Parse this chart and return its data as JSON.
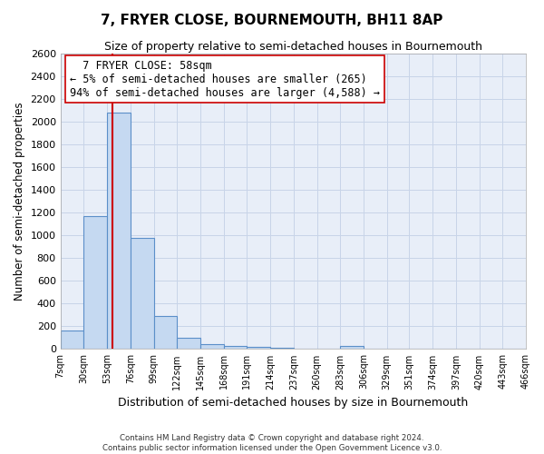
{
  "title": "7, FRYER CLOSE, BOURNEMOUTH, BH11 8AP",
  "subtitle": "Size of property relative to semi-detached houses in Bournemouth",
  "xlabel": "Distribution of semi-detached houses by size in Bournemouth",
  "ylabel": "Number of semi-detached properties",
  "bar_edges": [
    7,
    30,
    53,
    76,
    99,
    122,
    145,
    168,
    191,
    214,
    237,
    260,
    283,
    306,
    329,
    351,
    374,
    397,
    420,
    443,
    466
  ],
  "bar_heights": [
    160,
    1170,
    2080,
    975,
    290,
    100,
    45,
    30,
    20,
    10,
    0,
    0,
    30,
    0,
    0,
    0,
    0,
    0,
    0,
    0
  ],
  "bar_color": "#c5d9f1",
  "bar_edge_color": "#5b8fc9",
  "property_line_x": 58,
  "property_line_color": "#cc0000",
  "annotation_title": "7 FRYER CLOSE: 58sqm",
  "annotation_line1": "← 5% of semi-detached houses are smaller (265)",
  "annotation_line2": "94% of semi-detached houses are larger (4,588) →",
  "annotation_box_facecolor": "#ffffff",
  "annotation_box_edgecolor": "#cc0000",
  "ylim": [
    0,
    2600
  ],
  "yticks": [
    0,
    200,
    400,
    600,
    800,
    1000,
    1200,
    1400,
    1600,
    1800,
    2000,
    2200,
    2400,
    2600
  ],
  "xtick_labels": [
    "7sqm",
    "30sqm",
    "53sqm",
    "76sqm",
    "99sqm",
    "122sqm",
    "145sqm",
    "168sqm",
    "191sqm",
    "214sqm",
    "237sqm",
    "260sqm",
    "283sqm",
    "306sqm",
    "329sqm",
    "351sqm",
    "374sqm",
    "397sqm",
    "420sqm",
    "443sqm",
    "466sqm"
  ],
  "xtick_positions": [
    7,
    30,
    53,
    76,
    99,
    122,
    145,
    168,
    191,
    214,
    237,
    260,
    283,
    306,
    329,
    351,
    374,
    397,
    420,
    443,
    466
  ],
  "grid_color": "#c8d4e8",
  "background_color": "#e8eef8",
  "footer_line1": "Contains HM Land Registry data © Crown copyright and database right 2024.",
  "footer_line2": "Contains public sector information licensed under the Open Government Licence v3.0."
}
